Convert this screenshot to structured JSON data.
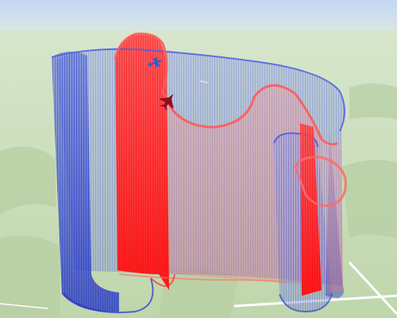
{
  "scene": {
    "sky_color": "#c6d9f4",
    "horizon_color": "#dfe9e4",
    "terrain_color": "#c8dcb4",
    "terrain_dark_color": "#b4cea2",
    "road_color": "#ffffff"
  },
  "track_blue": {
    "color": "#2233cc",
    "fill_color": "#6e7ee0",
    "icon": "airplane-icon",
    "icon_color": "#2a5fd6"
  },
  "track_red": {
    "color": "#ff1a1a",
    "fill_color": "#ff5050",
    "icon": "fighter-jet-icon",
    "icon_color": "#8a1020"
  }
}
